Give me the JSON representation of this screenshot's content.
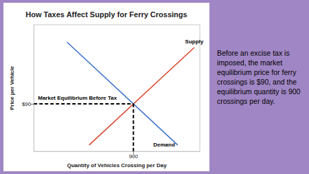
{
  "chart_data": {
    "type": "line",
    "title": "How Taxes Affect Supply for Ferry Crossings",
    "x_label": "Quantity of Vehicles Crossing per Day",
    "y_label": "Price per Vehicle",
    "xlim": [
      0,
      1500
    ],
    "ylim": [
      0,
      240
    ],
    "xticks": [
      900
    ],
    "yticks": [
      {
        "value": 90,
        "label": "$90"
      }
    ],
    "grid": false,
    "series": [
      {
        "name": "Supply",
        "color": "#d9452b",
        "x": [
          500,
          1450
        ],
        "values": [
          12,
          197
        ]
      },
      {
        "name": "Demand",
        "color": "#3a6fc9",
        "x": [
          300,
          1300
        ],
        "values": [
          207,
          12
        ]
      },
      {
        "name": "Market Equilibrium Before Tax",
        "color": "#000000",
        "line_style": "dashed",
        "x": [
          0,
          900
        ],
        "values": [
          90,
          90
        ]
      },
      {
        "color": "#000000",
        "line_style": "dashed",
        "x": [
          900,
          900
        ],
        "values": [
          90,
          0
        ]
      }
    ]
  },
  "text": "Before an excise tax is imposed, the market equilibrium price for ferry crossings is $90, and the equilibrium quantity is 900 crossings per day."
}
